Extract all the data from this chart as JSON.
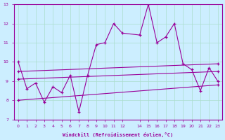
{
  "xlabel": "Windchill (Refroidissement éolien,°C)",
  "background_color": "#cceeff",
  "line_color": "#990099",
  "grid_color": "#aaddcc",
  "x_values": [
    0,
    1,
    2,
    3,
    4,
    5,
    6,
    7,
    8,
    9,
    10,
    11,
    12,
    14,
    15,
    16,
    17,
    18,
    19,
    20,
    21,
    22,
    23
  ],
  "series1": [
    10.0,
    8.6,
    8.9,
    7.9,
    8.7,
    8.4,
    9.3,
    7.4,
    9.3,
    10.9,
    11.0,
    12.0,
    11.5,
    11.4,
    13.0,
    11.0,
    11.3,
    12.0,
    9.9,
    9.6,
    8.5,
    9.7,
    9.0
  ],
  "series2_x": [
    0,
    23
  ],
  "series2_y": [
    9.1,
    9.5
  ],
  "series3_x": [
    0,
    23
  ],
  "series3_y": [
    9.5,
    9.9
  ],
  "series4_x": [
    0,
    23
  ],
  "series4_y": [
    8.0,
    8.8
  ],
  "ylim": [
    7,
    13
  ],
  "yticks": [
    7,
    8,
    9,
    10,
    11,
    12,
    13
  ],
  "xticks": [
    0,
    1,
    2,
    3,
    4,
    5,
    6,
    7,
    8,
    9,
    10,
    11,
    12,
    14,
    15,
    16,
    17,
    18,
    19,
    20,
    21,
    22,
    23
  ],
  "xtick_labels": [
    "0",
    "1",
    "2",
    "3",
    "4",
    "5",
    "6",
    "7",
    "8",
    "9",
    "10",
    "11",
    "12",
    "14",
    "15",
    "16",
    "17",
    "18",
    "19",
    "20",
    "21",
    "22",
    "23"
  ]
}
